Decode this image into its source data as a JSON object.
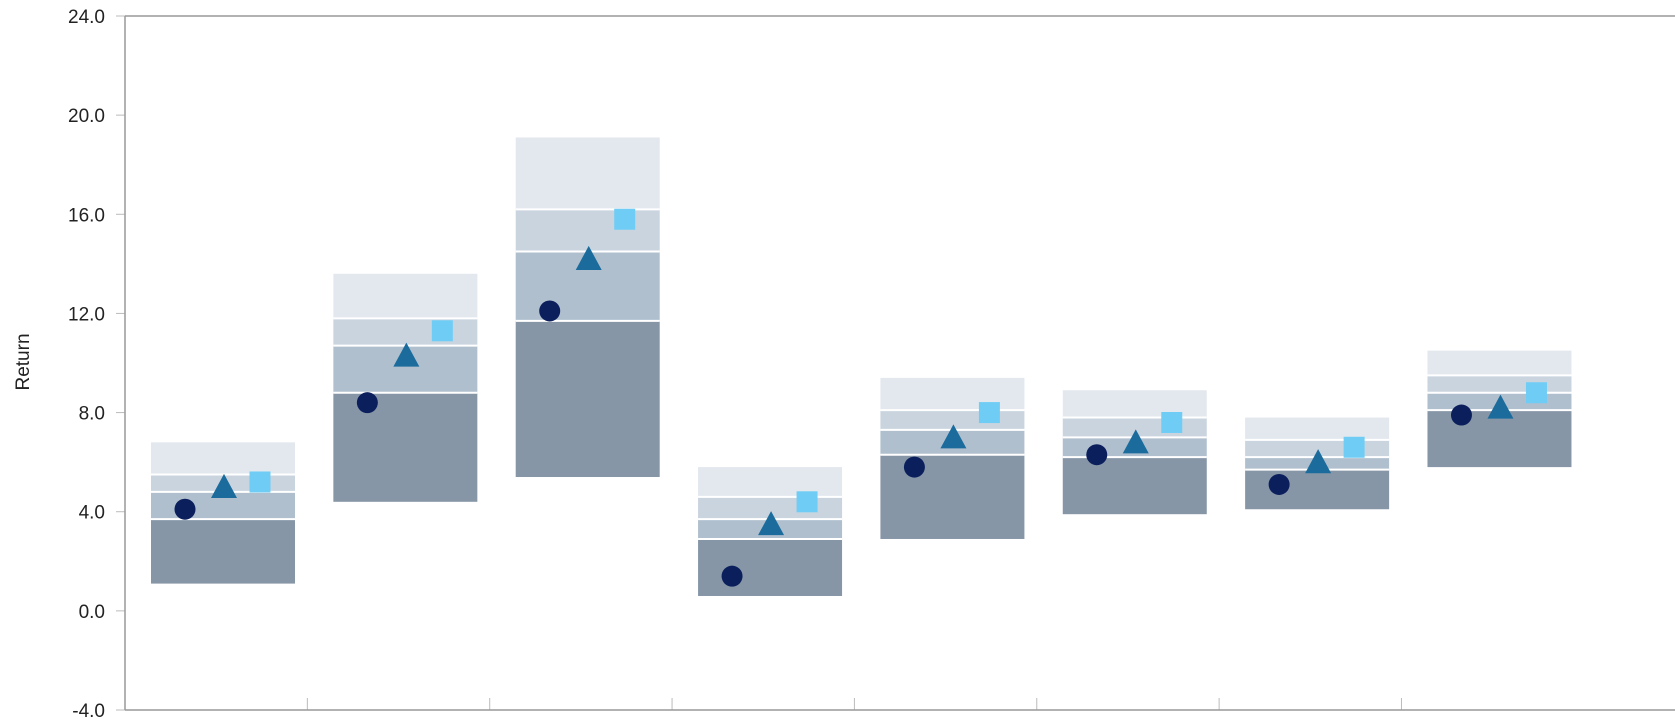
{
  "chart_data": {
    "type": "box-range",
    "title": "",
    "xlabel": "",
    "ylabel": "Return",
    "ylim": [
      -4.0,
      24.0
    ],
    "yticks": [
      "24.0",
      "20.0",
      "16.0",
      "12.0",
      "8.0",
      "4.0",
      "0.0",
      "-4.0"
    ],
    "ytick_values": [
      24,
      20,
      16,
      12,
      8,
      4,
      0,
      -4
    ],
    "grid": false,
    "legend": "none",
    "band_colors": [
      "#8696a7",
      "#b0bfce",
      "#cad4df",
      "#e3e8ef"
    ],
    "marker_colors": {
      "circle": "#0b1f5c",
      "triangle": "#1b6c9c",
      "square": "#6fcdf5"
    },
    "groups": [
      {
        "percentiles": [
          1.1,
          3.7,
          4.8,
          5.5,
          6.8
        ],
        "markers": {
          "circle": 4.1,
          "triangle": 5.0,
          "square": 5.2
        }
      },
      {
        "percentiles": [
          4.4,
          8.8,
          10.7,
          11.8,
          13.6
        ],
        "markers": {
          "circle": 8.4,
          "triangle": 10.3,
          "square": 11.3
        }
      },
      {
        "percentiles": [
          5.4,
          11.7,
          14.5,
          16.2,
          19.1
        ],
        "markers": {
          "circle": 12.1,
          "triangle": 14.2,
          "square": 15.8
        }
      },
      {
        "percentiles": [
          0.6,
          2.9,
          3.7,
          4.6,
          5.8
        ],
        "markers": {
          "circle": 1.4,
          "triangle": 3.5,
          "square": 4.4
        }
      },
      {
        "percentiles": [
          2.9,
          6.3,
          7.3,
          8.1,
          9.4
        ],
        "markers": {
          "circle": 5.8,
          "triangle": 7.0,
          "square": 8.0
        }
      },
      {
        "percentiles": [
          3.9,
          6.2,
          7.0,
          7.8,
          8.9
        ],
        "markers": {
          "circle": 6.3,
          "triangle": 6.8,
          "square": 7.6
        }
      },
      {
        "percentiles": [
          4.1,
          5.7,
          6.2,
          6.9,
          7.8
        ],
        "markers": {
          "circle": 5.1,
          "triangle": 6.0,
          "square": 6.6
        }
      },
      {
        "percentiles": [
          5.8,
          8.1,
          8.8,
          9.5,
          10.5
        ],
        "markers": {
          "circle": 7.9,
          "triangle": 8.2,
          "square": 8.8
        }
      }
    ]
  }
}
